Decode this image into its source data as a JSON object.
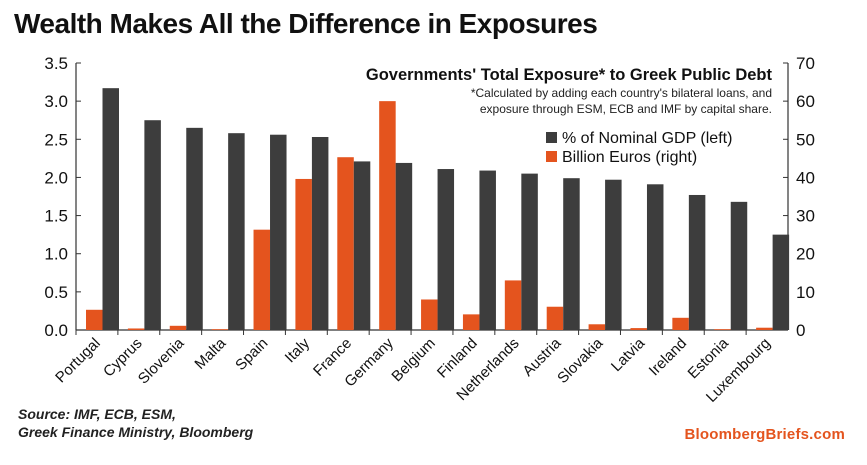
{
  "headline": "Wealth Makes All the Difference in Exposures",
  "source_lines": [
    "Source: IMF, ECB, ESM,",
    "Greek Finance Ministry, Bloomberg"
  ],
  "brand": "BloombergBriefs.com",
  "colors": {
    "gdp": "#3d3d3d",
    "euros": "#e4541e"
  },
  "chart_data": {
    "type": "bar",
    "title": "Governments' Total Exposure* to Greek Public Debt",
    "footnote": [
      "*Calculated by adding each country's bilateral loans, and",
      "exposure through ESM, ECB and IMF by capital share."
    ],
    "categories": [
      "Portugal",
      "Cyprus",
      "Slovenia",
      "Malta",
      "Spain",
      "Italy",
      "France",
      "Germany",
      "Belgium",
      "Finland",
      "Netherlands",
      "Austria",
      "Slovakia",
      "Latvia",
      "Ireland",
      "Estonia",
      "Luxembourg"
    ],
    "series": [
      {
        "name": "% of Nominal GDP (left)",
        "axis": "left",
        "values": [
          3.17,
          2.75,
          2.65,
          2.58,
          2.56,
          2.53,
          2.21,
          2.19,
          2.11,
          2.09,
          2.05,
          1.99,
          1.97,
          1.91,
          1.77,
          1.68,
          1.25
        ]
      },
      {
        "name": "Billion Euros (right)",
        "axis": "right",
        "values": [
          5.3,
          0.4,
          1.1,
          0.2,
          26.3,
          39.6,
          45.3,
          60.0,
          8.0,
          4.1,
          13.0,
          6.1,
          1.5,
          0.5,
          3.2,
          0.2,
          0.6
        ]
      }
    ],
    "yleft": {
      "lim": [
        0,
        3.5
      ],
      "ticks": [
        "0.0",
        "0.5",
        "1.0",
        "1.5",
        "2.0",
        "2.5",
        "3.0",
        "3.5"
      ]
    },
    "yright": {
      "lim": [
        0,
        70
      ],
      "ticks": [
        "0",
        "10",
        "20",
        "30",
        "40",
        "50",
        "60",
        "70"
      ]
    },
    "legend_position": "top-right",
    "grid": false
  }
}
